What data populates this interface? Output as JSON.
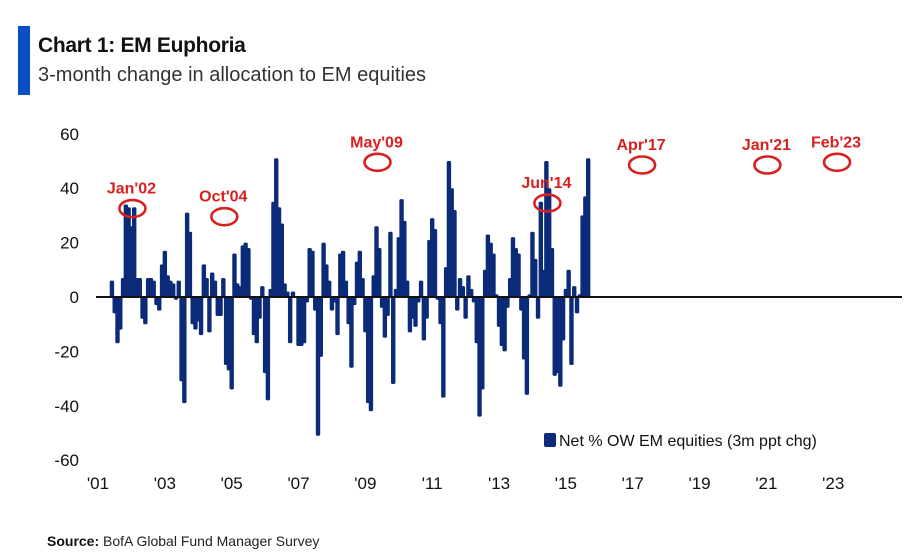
{
  "header": {
    "title": "Chart 1: EM Euphoria",
    "subtitle": "3-month change in allocation to EM equities"
  },
  "source": {
    "label": "Source:",
    "text": "BofA Global Fund Manager Survey"
  },
  "colors": {
    "bar": "#0b2a78",
    "annotation": "#d8201f",
    "accent": "#0a4fc4",
    "axis": "#111111"
  },
  "chart_data": {
    "type": "bar",
    "title": "Chart 1: EM Euphoria",
    "subtitle": "3-month change in allocation to EM equities",
    "xlabel": "",
    "ylabel": "",
    "ylim": [
      -60,
      60
    ],
    "yticks": [
      60,
      40,
      20,
      0,
      -20,
      -40,
      -60
    ],
    "xtick_labels": [
      "'01",
      "'03",
      "'05",
      "'07",
      "'09",
      "'11",
      "'13",
      "'15",
      "'17",
      "'19",
      "'21",
      "'23"
    ],
    "legend": {
      "label": "Net % OW EM equities (3m ppt chg)",
      "placement": "bottom-right"
    },
    "grid": false,
    "start": "2001-06",
    "frequency": "monthly",
    "series": [
      {
        "name": "Net % OW EM equities (3m ppt chg)",
        "values": [
          6,
          -6,
          -17,
          -12,
          7,
          34,
          33,
          26,
          33,
          7,
          7,
          -8,
          -10,
          7,
          7,
          6,
          -3,
          -5,
          12,
          17,
          8,
          6,
          5,
          -1,
          6,
          -31,
          -39,
          31,
          24,
          -10,
          -12,
          -9,
          -14,
          12,
          7,
          -13,
          9,
          6,
          -7,
          -7,
          7,
          -25,
          -27,
          -34,
          16,
          5,
          4,
          19,
          20,
          18,
          -1,
          -14,
          -17,
          -8,
          4,
          -28,
          -38,
          3,
          35,
          51,
          33,
          27,
          5,
          2,
          -17,
          2,
          0,
          -18,
          -18,
          -17,
          -2,
          18,
          17,
          -5,
          -51,
          -22,
          20,
          12,
          6,
          -5,
          -2,
          -14,
          16,
          17,
          6,
          -10,
          -26,
          -3,
          13,
          17,
          7,
          -13,
          -39,
          -42,
          8,
          26,
          18,
          -4,
          -15,
          -7,
          24,
          -32,
          3,
          22,
          36,
          28,
          6,
          -13,
          -8,
          -11,
          -2,
          6,
          -16,
          -8,
          21,
          29,
          25,
          -1,
          -10,
          -37,
          11,
          50,
          40,
          32,
          -5,
          7,
          4,
          -8,
          8,
          3,
          -2,
          -17,
          -44,
          -34,
          10,
          23,
          20,
          16,
          1,
          -11,
          -18,
          -20,
          -4,
          7,
          22,
          18,
          16,
          -5,
          -23,
          -36,
          1,
          24,
          14,
          -8,
          35,
          10,
          50,
          40,
          18,
          -29,
          -28,
          -33,
          -16,
          3,
          10,
          -25,
          4,
          -6,
          1,
          30,
          37,
          51
        ]
      }
    ],
    "annotations": [
      {
        "label": "Jan'02",
        "date": "2002-01",
        "value": 34
      },
      {
        "label": "Oct'04",
        "date": "2004-10",
        "value": 31
      },
      {
        "label": "May'09",
        "date": "2009-05",
        "value": 51
      },
      {
        "label": "Jun'14",
        "date": "2014-06",
        "value": 36
      },
      {
        "label": "Apr'17",
        "date": "2017-04",
        "value": 50
      },
      {
        "label": "Jan'21",
        "date": "2021-01",
        "value": 50
      },
      {
        "label": "Feb'23",
        "date": "2023-02",
        "value": 51
      }
    ]
  }
}
